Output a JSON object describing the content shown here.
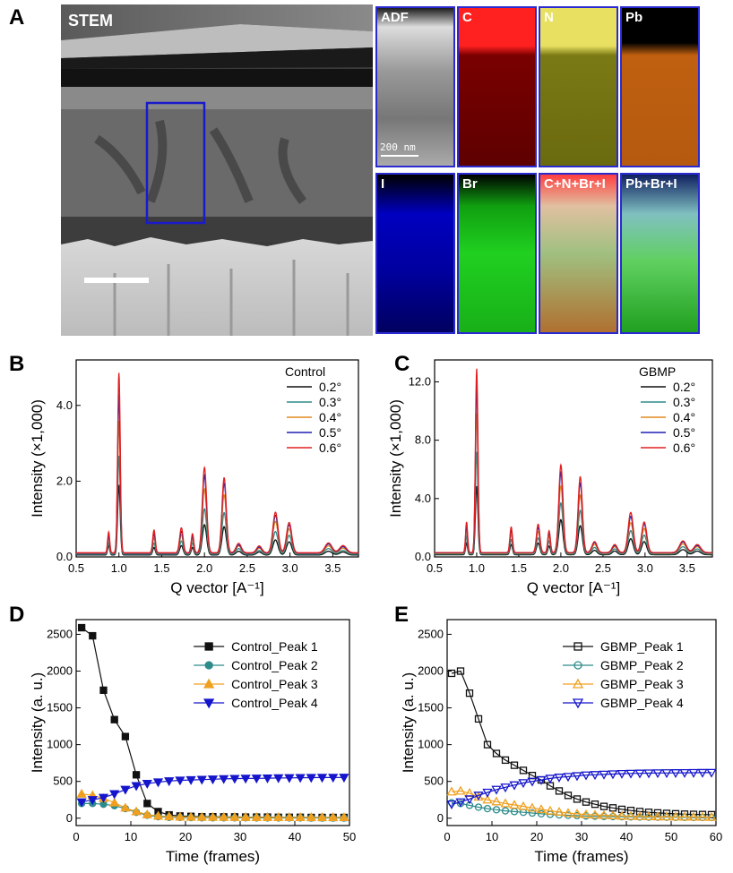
{
  "panels": {
    "A": "A",
    "B": "B",
    "C": "C",
    "D": "D",
    "E": "E"
  },
  "stem": {
    "label": "STEM"
  },
  "eds_tiles": [
    {
      "label": "ADF",
      "kind": "adf"
    },
    {
      "label": "C",
      "kind": "c"
    },
    {
      "label": "N",
      "kind": "n"
    },
    {
      "label": "Pb",
      "kind": "pb"
    },
    {
      "label": "I",
      "kind": "i"
    },
    {
      "label": "Br",
      "kind": "br"
    },
    {
      "label": "C+N+Br+I",
      "kind": "mix1"
    },
    {
      "label": "Pb+Br+I",
      "kind": "mix2"
    }
  ],
  "scalebar_label": "200 nm",
  "angle_colors": {
    "0.2°": "#111111",
    "0.3°": "#2e8b8b",
    "0.4°": "#e08a1e",
    "0.5°": "#1f1fb4",
    "0.6°": "#e02020"
  },
  "chart_data": [
    {
      "id": "B",
      "type": "line",
      "xlabel": "Q vector [A⁻¹]",
      "ylabel": "Intensity (×1,000)",
      "xlim": [
        0.5,
        3.8
      ],
      "ylim": [
        0,
        5.2
      ],
      "xticks": [
        "0.5",
        "1.0",
        "1.5",
        "2.0",
        "2.5",
        "3.0",
        "3.5"
      ],
      "yticks": [
        "0.0",
        "2.0",
        "4.0"
      ],
      "legend_title": "Control",
      "peaks": [
        {
          "q": 0.88,
          "w": 0.012,
          "a": [
            0.25,
            0.3,
            0.4,
            0.48,
            0.55
          ]
        },
        {
          "q": 1.0,
          "w": 0.015,
          "a": [
            1.85,
            2.6,
            3.5,
            4.2,
            4.75
          ]
        },
        {
          "q": 1.41,
          "w": 0.015,
          "a": [
            0.2,
            0.3,
            0.42,
            0.52,
            0.6
          ]
        },
        {
          "q": 1.73,
          "w": 0.02,
          "a": [
            0.25,
            0.35,
            0.5,
            0.58,
            0.66
          ]
        },
        {
          "q": 1.86,
          "w": 0.015,
          "a": [
            0.2,
            0.3,
            0.38,
            0.45,
            0.5
          ]
        },
        {
          "q": 2.0,
          "w": 0.025,
          "a": [
            0.8,
            1.2,
            1.7,
            2.05,
            2.25
          ]
        },
        {
          "q": 2.23,
          "w": 0.025,
          "a": [
            0.75,
            1.1,
            1.55,
            1.85,
            1.98
          ]
        },
        {
          "q": 2.4,
          "w": 0.03,
          "a": [
            0.1,
            0.15,
            0.2,
            0.22,
            0.25
          ]
        },
        {
          "q": 2.64,
          "w": 0.03,
          "a": [
            0.08,
            0.1,
            0.14,
            0.16,
            0.18
          ]
        },
        {
          "q": 2.83,
          "w": 0.03,
          "a": [
            0.4,
            0.6,
            0.85,
            1.0,
            1.07
          ]
        },
        {
          "q": 2.99,
          "w": 0.03,
          "a": [
            0.35,
            0.5,
            0.65,
            0.75,
            0.8
          ]
        },
        {
          "q": 3.45,
          "w": 0.04,
          "a": [
            0.1,
            0.15,
            0.2,
            0.24,
            0.26
          ]
        },
        {
          "q": 3.62,
          "w": 0.04,
          "a": [
            0.08,
            0.1,
            0.14,
            0.17,
            0.19
          ]
        }
      ],
      "baseline": [
        0.05,
        0.07,
        0.09,
        0.1,
        0.11
      ],
      "series": [
        {
          "name": "0.2°",
          "color": "#111111"
        },
        {
          "name": "0.3°",
          "color": "#2e8b8b"
        },
        {
          "name": "0.4°",
          "color": "#e08a1e"
        },
        {
          "name": "0.5°",
          "color": "#1f1fb4"
        },
        {
          "name": "0.6°",
          "color": "#e02020"
        }
      ]
    },
    {
      "id": "C",
      "type": "line",
      "xlabel": "Q vector [A⁻¹]",
      "ylabel": "Intensity (×1,000)",
      "xlim": [
        0.5,
        3.8
      ],
      "ylim": [
        0,
        13.5
      ],
      "xticks": [
        "0.5",
        "1.0",
        "1.5",
        "2.0",
        "2.5",
        "3.0",
        "3.5"
      ],
      "yticks": [
        "0.0",
        "4.0",
        "8.0",
        "12.0"
      ],
      "legend_title": "GBMP",
      "peaks": [
        {
          "q": 0.88,
          "w": 0.012,
          "a": [
            0.8,
            1.2,
            1.6,
            1.9,
            2.1
          ]
        },
        {
          "q": 1.0,
          "w": 0.015,
          "a": [
            4.7,
            7.0,
            9.6,
            11.5,
            12.6
          ]
        },
        {
          "q": 1.41,
          "w": 0.015,
          "a": [
            0.7,
            1.0,
            1.3,
            1.6,
            1.75
          ]
        },
        {
          "q": 1.73,
          "w": 0.02,
          "a": [
            0.8,
            1.1,
            1.5,
            1.75,
            1.95
          ]
        },
        {
          "q": 1.86,
          "w": 0.015,
          "a": [
            0.6,
            0.9,
            1.2,
            1.4,
            1.5
          ]
        },
        {
          "q": 2.0,
          "w": 0.025,
          "a": [
            2.4,
            3.5,
            4.6,
            5.5,
            6.0
          ]
        },
        {
          "q": 2.23,
          "w": 0.025,
          "a": [
            2.0,
            3.0,
            4.0,
            4.8,
            5.2
          ]
        },
        {
          "q": 2.4,
          "w": 0.03,
          "a": [
            0.3,
            0.45,
            0.6,
            0.7,
            0.75
          ]
        },
        {
          "q": 2.64,
          "w": 0.03,
          "a": [
            0.25,
            0.35,
            0.45,
            0.5,
            0.55
          ]
        },
        {
          "q": 2.83,
          "w": 0.03,
          "a": [
            1.1,
            1.6,
            2.1,
            2.5,
            2.75
          ]
        },
        {
          "q": 2.99,
          "w": 0.03,
          "a": [
            0.9,
            1.3,
            1.7,
            2.0,
            2.1
          ]
        },
        {
          "q": 3.45,
          "w": 0.04,
          "a": [
            0.35,
            0.5,
            0.65,
            0.75,
            0.8
          ]
        },
        {
          "q": 3.62,
          "w": 0.04,
          "a": [
            0.25,
            0.35,
            0.45,
            0.5,
            0.55
          ]
        }
      ],
      "baseline": [
        0.15,
        0.2,
        0.25,
        0.28,
        0.3
      ],
      "series": [
        {
          "name": "0.2°",
          "color": "#111111"
        },
        {
          "name": "0.3°",
          "color": "#2e8b8b"
        },
        {
          "name": "0.4°",
          "color": "#e08a1e"
        },
        {
          "name": "0.5°",
          "color": "#1f1fb4"
        },
        {
          "name": "0.6°",
          "color": "#e02020"
        }
      ]
    },
    {
      "id": "D",
      "type": "line",
      "xlabel": "Time (frames)",
      "ylabel": "Intensity (a. u.)",
      "xlim": [
        0,
        50
      ],
      "ylim": [
        -100,
        2700
      ],
      "xticks": [
        0,
        10,
        20,
        30,
        40,
        50
      ],
      "yticks": [
        0,
        500,
        1000,
        1500,
        2000,
        2500
      ],
      "filled": true,
      "series": [
        {
          "name": "Control_Peak 1",
          "color": "#111111",
          "marker": "square",
          "x": [
            1,
            3,
            5,
            7,
            9,
            11,
            13,
            15,
            17,
            19,
            21,
            23,
            25,
            27,
            29,
            31,
            33,
            35,
            37,
            39,
            41,
            43,
            45,
            47,
            49
          ],
          "y": [
            2590,
            2480,
            1740,
            1340,
            1110,
            590,
            200,
            90,
            45,
            30,
            25,
            20,
            20,
            18,
            18,
            15,
            15,
            15,
            12,
            12,
            12,
            10,
            10,
            10,
            10
          ]
        },
        {
          "name": "Control_Peak 2",
          "color": "#2e8b8b",
          "marker": "circle",
          "x": [
            1,
            3,
            5,
            7,
            9,
            11,
            13,
            15,
            17,
            19,
            21,
            23,
            25,
            27,
            29,
            31,
            33,
            35,
            37,
            39,
            41,
            43,
            45,
            47,
            49
          ],
          "y": [
            200,
            200,
            190,
            170,
            130,
            80,
            40,
            20,
            12,
            10,
            8,
            6,
            6,
            5,
            5,
            5,
            4,
            4,
            4,
            4,
            4,
            3,
            3,
            3,
            3
          ]
        },
        {
          "name": "Control_Peak 3",
          "color": "#f0a020",
          "marker": "triangle",
          "x": [
            1,
            3,
            5,
            7,
            9,
            11,
            13,
            15,
            17,
            19,
            21,
            23,
            25,
            27,
            29,
            31,
            33,
            35,
            37,
            39,
            41,
            43,
            45,
            47,
            49
          ],
          "y": [
            330,
            310,
            270,
            210,
            140,
            90,
            50,
            30,
            22,
            18,
            16,
            15,
            14,
            14,
            13,
            13,
            12,
            12,
            12,
            12,
            12,
            12,
            12,
            12,
            12
          ]
        },
        {
          "name": "Control_Peak 4",
          "color": "#1515cc",
          "marker": "triangle-down",
          "x": [
            1,
            3,
            5,
            7,
            9,
            11,
            13,
            15,
            17,
            19,
            21,
            23,
            25,
            27,
            29,
            31,
            33,
            35,
            37,
            39,
            41,
            43,
            45,
            47,
            49
          ],
          "y": [
            220,
            250,
            280,
            330,
            390,
            440,
            470,
            490,
            505,
            515,
            520,
            525,
            530,
            535,
            538,
            540,
            542,
            544,
            546,
            548,
            550,
            551,
            552,
            553,
            554
          ]
        }
      ]
    },
    {
      "id": "E",
      "type": "line",
      "xlabel": "Time (frames)",
      "ylabel": "Intensity (a. u.)",
      "xlim": [
        0,
        60
      ],
      "ylim": [
        -100,
        2700
      ],
      "xticks": [
        0,
        10,
        20,
        30,
        40,
        50,
        60
      ],
      "yticks": [
        0,
        500,
        1000,
        1500,
        2000,
        2500
      ],
      "filled": false,
      "series": [
        {
          "name": "GBMP_Peak 1",
          "color": "#111111",
          "marker": "square",
          "x": [
            1,
            3,
            5,
            7,
            9,
            11,
            13,
            15,
            17,
            19,
            21,
            23,
            25,
            27,
            29,
            31,
            33,
            35,
            37,
            39,
            41,
            43,
            45,
            47,
            49,
            51,
            53,
            55,
            57,
            59
          ],
          "y": [
            1970,
            2000,
            1700,
            1350,
            1000,
            880,
            790,
            720,
            650,
            580,
            520,
            440,
            370,
            310,
            260,
            220,
            190,
            160,
            140,
            120,
            105,
            90,
            80,
            72,
            65,
            60,
            55,
            52,
            50,
            48
          ]
        },
        {
          "name": "GBMP_Peak 2",
          "color": "#2e8b8b",
          "marker": "circle",
          "x": [
            1,
            3,
            5,
            7,
            9,
            11,
            13,
            15,
            17,
            19,
            21,
            23,
            25,
            27,
            29,
            31,
            33,
            35,
            37,
            39,
            41,
            43,
            45,
            47,
            49,
            51,
            53,
            55,
            57,
            59
          ],
          "y": [
            210,
            200,
            175,
            150,
            130,
            115,
            100,
            90,
            80,
            70,
            60,
            52,
            45,
            40,
            35,
            30,
            27,
            24,
            22,
            20,
            18,
            16,
            15,
            14,
            13,
            12,
            11,
            10,
            10,
            10
          ]
        },
        {
          "name": "GBMP_Peak 3",
          "color": "#f0a020",
          "marker": "triangle",
          "x": [
            1,
            3,
            5,
            7,
            9,
            11,
            13,
            15,
            17,
            19,
            21,
            23,
            25,
            27,
            29,
            31,
            33,
            35,
            37,
            39,
            41,
            43,
            45,
            47,
            49,
            51,
            53,
            55,
            57,
            59
          ],
          "y": [
            360,
            370,
            340,
            290,
            250,
            225,
            200,
            180,
            160,
            140,
            120,
            100,
            85,
            70,
            60,
            50,
            45,
            40,
            35,
            30,
            28,
            25,
            23,
            21,
            20,
            19,
            18,
            17,
            16,
            15
          ]
        },
        {
          "name": "GBMP_Peak 4",
          "color": "#1515cc",
          "marker": "triangle-down",
          "x": [
            1,
            3,
            5,
            7,
            9,
            11,
            13,
            15,
            17,
            19,
            21,
            23,
            25,
            27,
            29,
            31,
            33,
            35,
            37,
            39,
            41,
            43,
            45,
            47,
            49,
            51,
            53,
            55,
            57,
            59
          ],
          "y": [
            190,
            220,
            260,
            310,
            350,
            390,
            420,
            450,
            480,
            500,
            520,
            540,
            555,
            565,
            575,
            585,
            590,
            595,
            600,
            605,
            608,
            610,
            612,
            614,
            615,
            616,
            617,
            618,
            619,
            620
          ]
        }
      ]
    }
  ]
}
